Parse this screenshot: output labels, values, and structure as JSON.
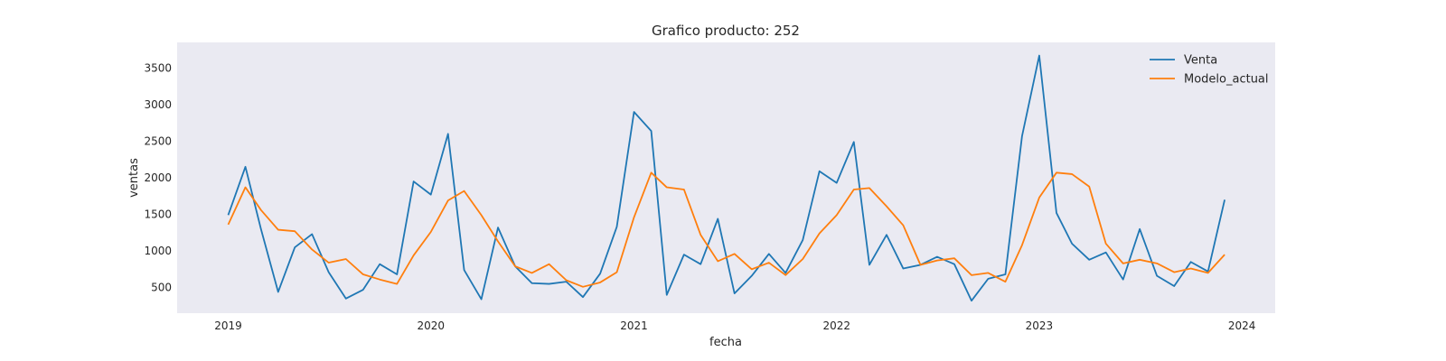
{
  "chart_data": {
    "type": "line",
    "title": "Grafico producto: 252",
    "xlabel": "fecha",
    "ylabel": "ventas",
    "x_axis_type": "date",
    "xlim": [
      "2018-10-01",
      "2024-03-01"
    ],
    "ylim": [
      150,
      3850
    ],
    "x_ticks": [
      "2019-01-01",
      "2020-01-01",
      "2021-01-01",
      "2022-01-01",
      "2023-01-01",
      "2024-01-01"
    ],
    "x_tick_labels": [
      "2019",
      "2020",
      "2021",
      "2022",
      "2023",
      "2024"
    ],
    "y_ticks": [
      500,
      1000,
      1500,
      2000,
      2500,
      3000,
      3500
    ],
    "grid": false,
    "legend_position": "top-right",
    "background_color": "#eaeaf2",
    "x": [
      "2019-01",
      "2019-02",
      "2019-03",
      "2019-04",
      "2019-05",
      "2019-06",
      "2019-07",
      "2019-08",
      "2019-09",
      "2019-10",
      "2019-11",
      "2019-12",
      "2020-01",
      "2020-02",
      "2020-03",
      "2020-04",
      "2020-05",
      "2020-06",
      "2020-07",
      "2020-08",
      "2020-09",
      "2020-10",
      "2020-11",
      "2020-12",
      "2021-01",
      "2021-02",
      "2021-03",
      "2021-04",
      "2021-05",
      "2021-06",
      "2021-07",
      "2021-08",
      "2021-09",
      "2021-10",
      "2021-11",
      "2021-12",
      "2022-01",
      "2022-02",
      "2022-03",
      "2022-04",
      "2022-05",
      "2022-06",
      "2022-07",
      "2022-08",
      "2022-09",
      "2022-10",
      "2022-11",
      "2022-12",
      "2023-01",
      "2023-02",
      "2023-03",
      "2023-04",
      "2023-05",
      "2023-06",
      "2023-07",
      "2023-08",
      "2023-09",
      "2023-10",
      "2023-11",
      "2023-12"
    ],
    "series": [
      {
        "name": "Venta",
        "color": "#1f77b4",
        "values": [
          1490,
          2150,
          1300,
          440,
          1050,
          1230,
          710,
          350,
          470,
          820,
          680,
          1950,
          1770,
          2600,
          740,
          340,
          1320,
          790,
          560,
          550,
          580,
          370,
          690,
          1330,
          2900,
          2640,
          400,
          950,
          820,
          1440,
          420,
          660,
          960,
          700,
          1150,
          2090,
          1930,
          2490,
          810,
          1220,
          760,
          810,
          920,
          820,
          320,
          620,
          680,
          2570,
          3670,
          1520,
          1100,
          880,
          980,
          610,
          1300,
          660,
          520,
          850,
          720,
          1700
        ]
      },
      {
        "name": "Modelo_actual",
        "color": "#ff7f0e",
        "values": [
          1360,
          1870,
          1560,
          1290,
          1270,
          1020,
          840,
          890,
          680,
          610,
          550,
          940,
          1260,
          1690,
          1820,
          1490,
          1130,
          790,
          700,
          820,
          600,
          510,
          570,
          710,
          1460,
          2070,
          1870,
          1840,
          1220,
          860,
          960,
          750,
          840,
          670,
          890,
          1240,
          1490,
          1840,
          1860,
          1610,
          1350,
          810,
          870,
          900,
          670,
          700,
          580,
          1080,
          1730,
          2070,
          2050,
          1880,
          1100,
          830,
          880,
          830,
          710,
          760,
          700,
          950
        ]
      }
    ]
  }
}
